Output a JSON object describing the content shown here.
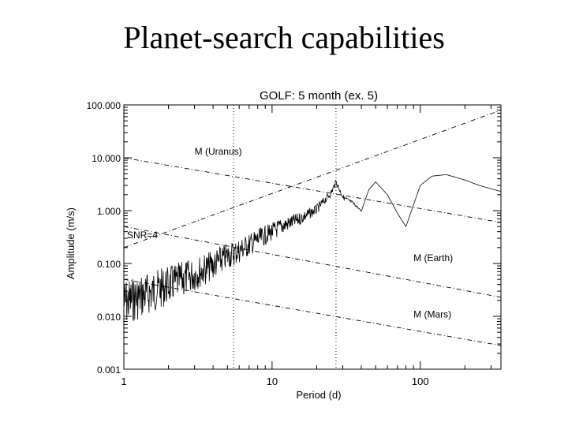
{
  "slide": {
    "title": "Planet-search capabilities"
  },
  "chart_data": {
    "type": "line",
    "title": "GOLF: 5 month (ex. 5)",
    "xlabel": "Period (d)",
    "ylabel": "Amplitude (m/s)",
    "xscale": "log",
    "yscale": "log",
    "xlim": [
      1,
      350
    ],
    "ylim": [
      0.001,
      100
    ],
    "xticks": [
      1,
      10,
      100
    ],
    "xtick_labels": [
      "1",
      "10",
      "100"
    ],
    "yticks": [
      0.001,
      0.01,
      0.1,
      1,
      10,
      100
    ],
    "ytick_labels": [
      "0.001",
      "0.010",
      "0.100",
      "1.000",
      "10.000",
      "100.000"
    ],
    "grid": false,
    "vertical_lines": [
      {
        "x": 5.5,
        "style": "dotted"
      },
      {
        "x": 27,
        "style": "dotted"
      }
    ],
    "series": [
      {
        "style": "solid",
        "x": [
          1,
          1.5,
          2,
          3,
          4,
          5,
          6,
          8,
          10,
          12,
          15,
          20,
          25,
          27,
          30,
          35,
          40,
          45,
          50,
          60,
          70,
          80,
          100,
          120,
          150,
          200,
          250,
          300,
          350
        ],
        "y": [
          0.05,
          0.07,
          0.09,
          0.13,
          0.18,
          0.25,
          0.3,
          0.45,
          0.6,
          0.75,
          0.9,
          1.3,
          2.5,
          4,
          2.0,
          1.5,
          1.0,
          2.5,
          3.5,
          2.0,
          0.9,
          0.5,
          3.0,
          4.5,
          4.8,
          3.8,
          3.0,
          2.6,
          2.3
        ]
      },
      {
        "name": "SNR=4",
        "style": "dash-dot",
        "x": [
          1,
          350
        ],
        "y": [
          0.2,
          80
        ]
      },
      {
        "name": "M (Uranus)",
        "style": "dash-dot",
        "x": [
          1,
          350
        ],
        "y": [
          10,
          0.6
        ]
      },
      {
        "name": "M (Earth)",
        "style": "dash-dot",
        "x": [
          1,
          350
        ],
        "y": [
          0.5,
          0.023
        ]
      },
      {
        "name": "M (Mars)",
        "style": "dash-dot",
        "x": [
          1,
          350
        ],
        "y": [
          0.05,
          0.0028
        ]
      }
    ]
  }
}
